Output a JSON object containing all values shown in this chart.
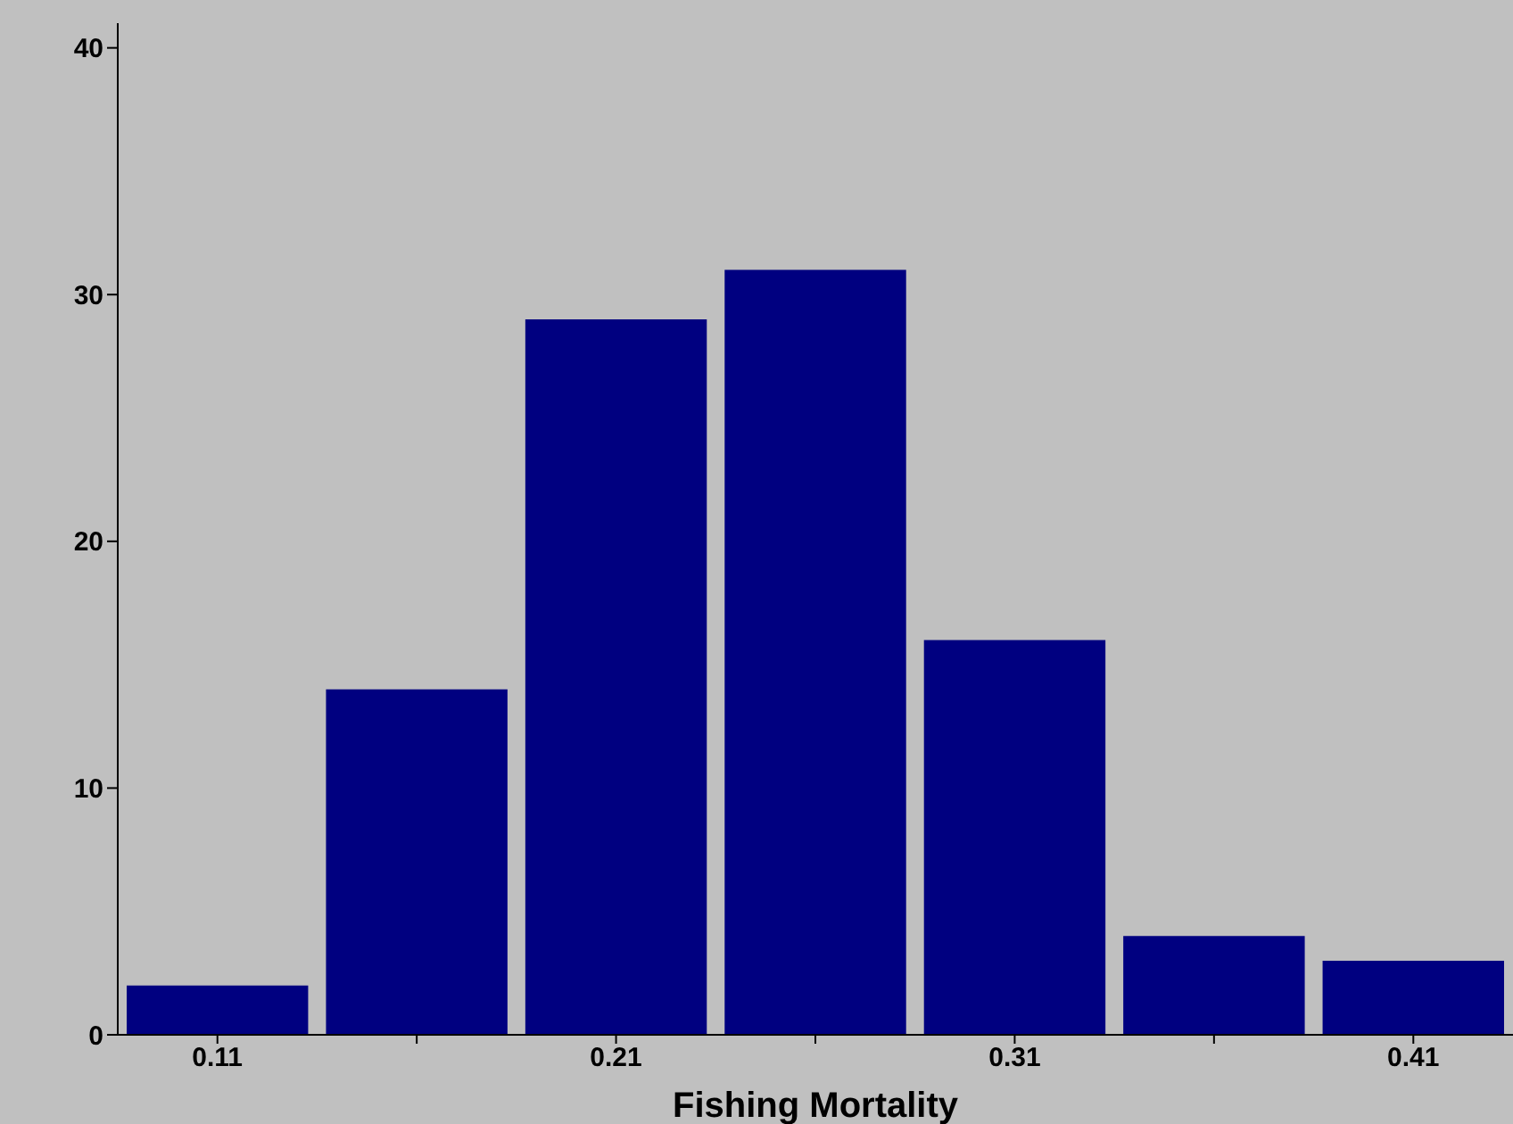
{
  "chart_data": {
    "type": "histogram",
    "xlabel": "Fishing Mortality",
    "bins": [
      0.085,
      0.135,
      0.185,
      0.235,
      0.285,
      0.335,
      0.385,
      0.435
    ],
    "values": [
      2,
      14,
      29,
      31,
      16,
      4,
      3
    ],
    "color": "#000080",
    "xlim": [
      0.085,
      0.435
    ],
    "xticks": [
      0.11,
      {
        "value": 0.16,
        "label": null
      },
      0.21,
      {
        "value": 0.26,
        "label": null
      },
      0.31,
      {
        "value": 0.36,
        "label": null
      },
      0.41
    ],
    "ylim": [
      0,
      41
    ],
    "yticks": [
      0,
      10,
      20,
      30,
      40
    ],
    "grid": false,
    "legend": false
  }
}
